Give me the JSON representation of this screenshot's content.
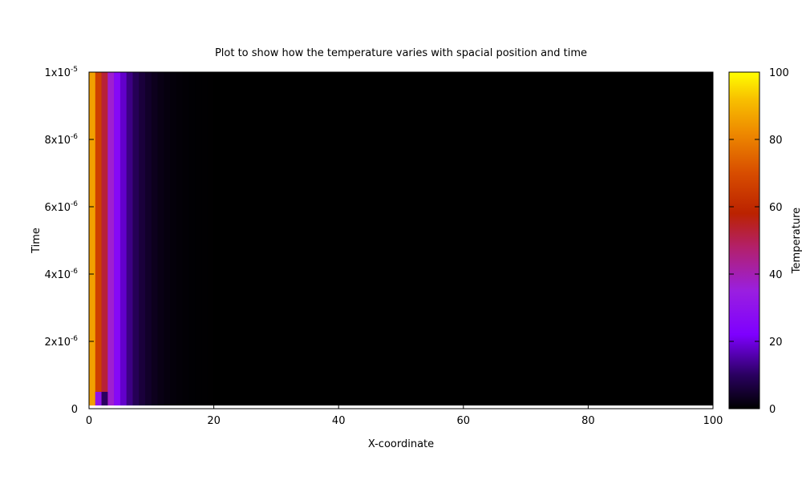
{
  "chart_data": {
    "type": "heatmap",
    "title": "Plot to show how the temperature varies with spacial position and time",
    "xlabel": "X-coordinate",
    "ylabel": "Time",
    "xlim": [
      0,
      100
    ],
    "ylim": [
      0,
      1e-05
    ],
    "x_ticks": [
      {
        "value": 0,
        "label": "0"
      },
      {
        "value": 20,
        "label": "20"
      },
      {
        "value": 40,
        "label": "40"
      },
      {
        "value": 60,
        "label": "60"
      },
      {
        "value": 80,
        "label": "80"
      },
      {
        "value": 100,
        "label": "100"
      }
    ],
    "y_ticks": [
      {
        "value": 0,
        "mantissa": "0",
        "exp": ""
      },
      {
        "value": 2e-06,
        "mantissa": "2x10",
        "exp": "-6"
      },
      {
        "value": 4e-06,
        "mantissa": "4x10",
        "exp": "-6"
      },
      {
        "value": 6e-06,
        "mantissa": "6x10",
        "exp": "-6"
      },
      {
        "value": 8e-06,
        "mantissa": "8x10",
        "exp": "-6"
      },
      {
        "value": 1e-05,
        "mantissa": "1x10",
        "exp": "-5"
      }
    ],
    "colorbar": {
      "label": "Temperature",
      "range": [
        0,
        100
      ],
      "ticks": [
        "0",
        "20",
        "40",
        "60",
        "80",
        "100"
      ],
      "palette": "black-blue-purple-red-orange-yellow"
    },
    "cell_value_fn": "T(x,t) ≈ 100·exp(-x/2.8)",
    "colors": {
      "background": "#000000",
      "low": "#000000",
      "high": "#ffff00"
    }
  }
}
